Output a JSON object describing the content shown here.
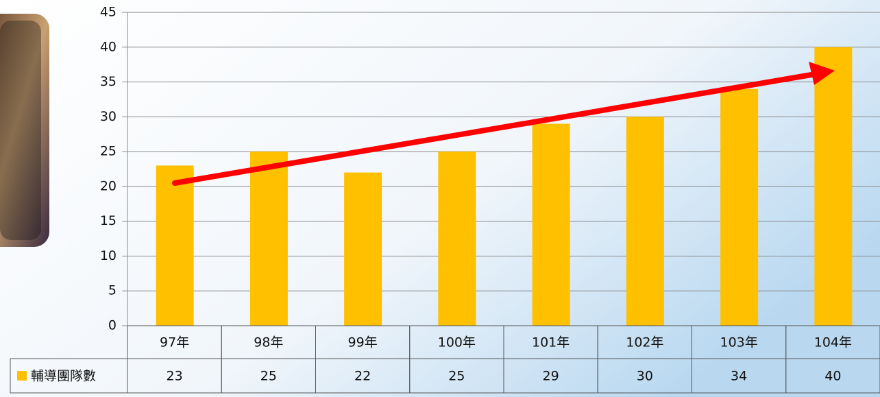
{
  "chart_data": {
    "type": "bar",
    "categories": [
      "97年",
      "98年",
      "99年",
      "100年",
      "101年",
      "102年",
      "103年",
      "104年"
    ],
    "series": [
      {
        "name": "輔導團隊數",
        "color": "#ffc000",
        "values": [
          23,
          25,
          22,
          25,
          29,
          30,
          34,
          40
        ]
      }
    ],
    "ylim": [
      0,
      45
    ],
    "yticks": [
      0,
      5,
      10,
      15,
      20,
      25,
      30,
      35,
      40,
      45
    ],
    "grid": true
  }
}
